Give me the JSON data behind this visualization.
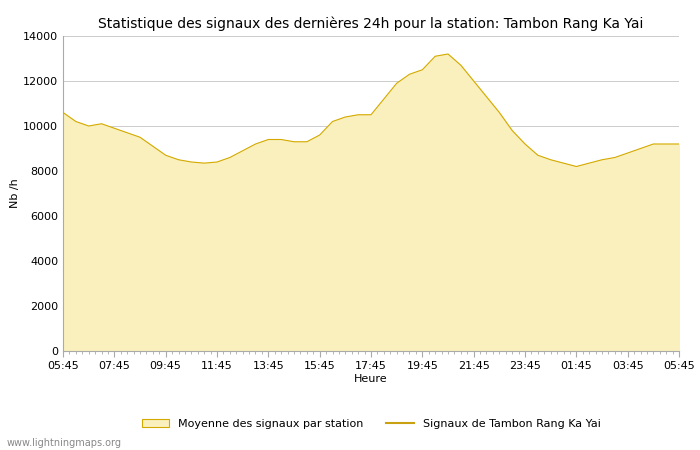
{
  "title": "Statistique des signaux des dernières 24h pour la station: Tambon Rang Ka Yai",
  "xlabel": "Heure",
  "ylabel": "Nb /h",
  "ylim": [
    0,
    14000
  ],
  "yticks": [
    0,
    2000,
    4000,
    6000,
    8000,
    10000,
    12000,
    14000
  ],
  "xtick_labels": [
    "05:45",
    "07:45",
    "09:45",
    "11:45",
    "13:45",
    "15:45",
    "17:45",
    "19:45",
    "21:45",
    "23:45",
    "01:45",
    "03:45",
    "05:45"
  ],
  "fill_color": "#FAF0BE",
  "fill_edge_color": "#D4AA00",
  "line_color": "#C8A010",
  "background_color": "#ffffff",
  "grid_color": "#cccccc",
  "watermark": "www.lightningmaps.org",
  "legend_fill_label": "Moyenne des signaux par station",
  "legend_line_label": "Signaux de Tambon Rang Ka Yai",
  "title_fontsize": 10,
  "tick_fontsize": 8,
  "label_fontsize": 8,
  "watermark_fontsize": 7,
  "time_points": [
    0,
    0.5,
    1.0,
    1.5,
    2.0,
    2.5,
    3.0,
    3.5,
    4.0,
    4.5,
    5.0,
    5.5,
    6.0,
    6.5,
    7.0,
    7.5,
    8.0,
    8.5,
    9.0,
    9.5,
    10.0,
    10.5,
    11.0,
    11.5,
    12.0,
    12.5,
    13.0,
    13.5,
    14.0,
    14.5,
    15.0,
    15.5,
    16.0,
    16.5,
    17.0,
    17.5,
    18.0,
    18.5,
    19.0,
    19.5,
    20.0,
    20.5,
    21.0,
    21.5,
    22.0,
    22.5,
    23.0,
    23.5,
    24.0
  ],
  "values": [
    10600,
    10200,
    10000,
    10100,
    9900,
    9700,
    9500,
    9100,
    8700,
    8500,
    8400,
    8350,
    8400,
    8600,
    8900,
    9200,
    9400,
    9400,
    9300,
    9300,
    9600,
    10200,
    10400,
    10500,
    10500,
    11200,
    11900,
    12300,
    12500,
    13100,
    13200,
    12700,
    12000,
    11300,
    10600,
    9800,
    9200,
    8700,
    8500,
    8350,
    8200,
    8350,
    8500,
    8600,
    8800,
    9000,
    9200,
    9200,
    9200
  ]
}
